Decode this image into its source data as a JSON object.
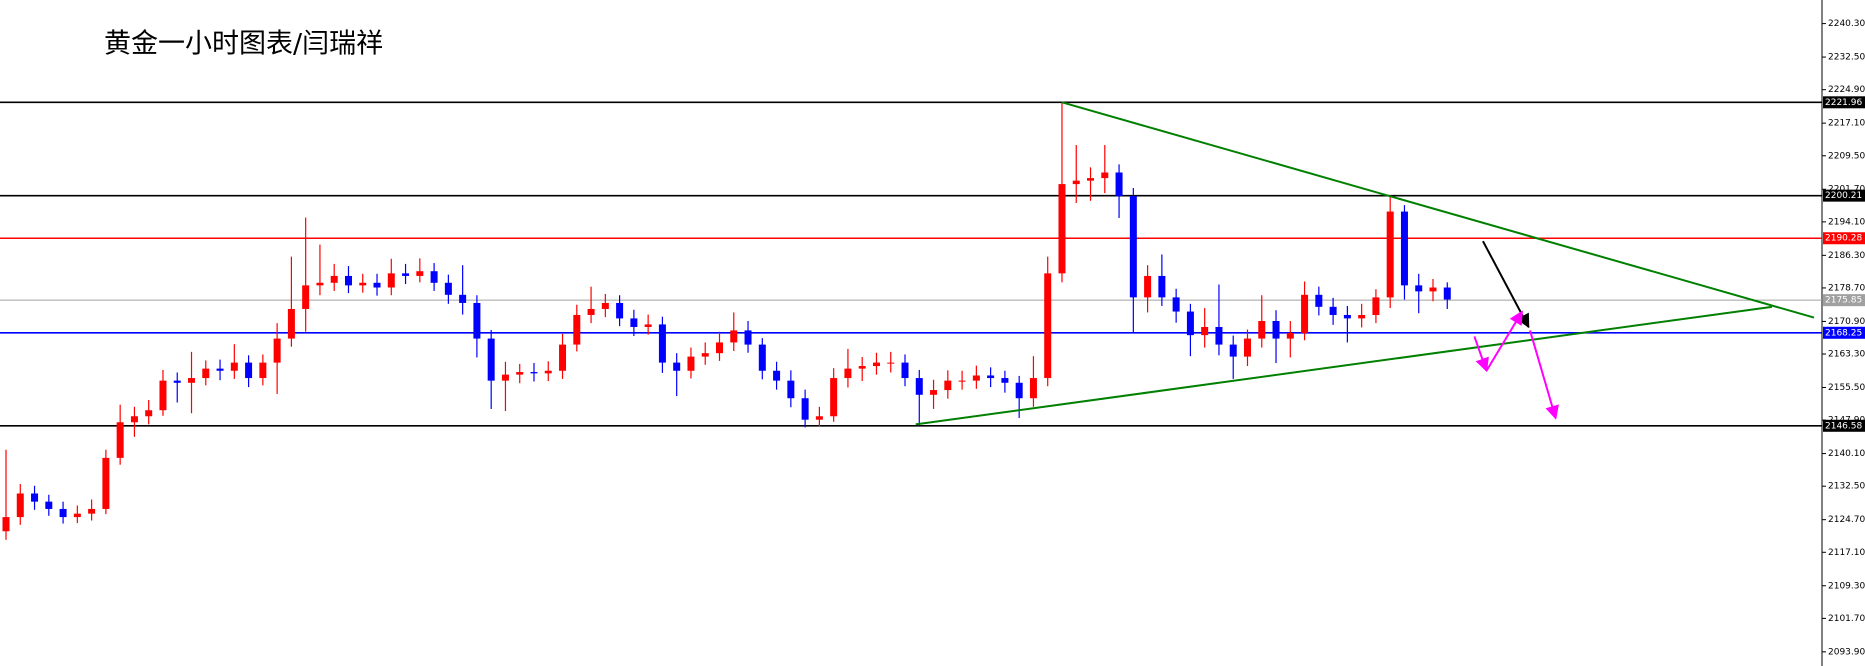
{
  "chart_data": {
    "type": "candlestick",
    "title": "黄金一小时图表/闫瑞祥",
    "up_color": "#ff0000",
    "down_color": "#0000ff",
    "ylim": [
      2090.6,
      2245.8
    ],
    "yticks": [
      {
        "value": 2240.3,
        "label": "2240.30"
      },
      {
        "value": 2232.5,
        "label": "2232.50"
      },
      {
        "value": 2224.9,
        "label": "2224.90"
      },
      {
        "value": 2217.1,
        "label": "2217.10"
      },
      {
        "value": 2209.5,
        "label": "2209.50"
      },
      {
        "value": 2201.7,
        "label": "2201.70"
      },
      {
        "value": 2194.1,
        "label": "2194.10"
      },
      {
        "value": 2186.3,
        "label": "2186.30"
      },
      {
        "value": 2178.7,
        "label": "2178.70"
      },
      {
        "value": 2170.9,
        "label": "2170.90"
      },
      {
        "value": 2163.3,
        "label": "2163.30"
      },
      {
        "value": 2155.5,
        "label": "2155.50"
      },
      {
        "value": 2147.9,
        "label": "2147.90"
      },
      {
        "value": 2140.1,
        "label": "2140.10"
      },
      {
        "value": 2132.5,
        "label": "2132.50"
      },
      {
        "value": 2124.7,
        "label": "2124.70"
      },
      {
        "value": 2117.1,
        "label": "2117.10"
      },
      {
        "value": 2109.3,
        "label": "2109.30"
      },
      {
        "value": 2101.7,
        "label": "2101.70"
      },
      {
        "value": 2093.9,
        "label": "2093.90"
      }
    ],
    "open": [
      2122.0,
      2125.3,
      2130.8,
      2128.9,
      2127.2,
      2125.3,
      2126.1,
      2127.2,
      2139.1,
      2147.4,
      2148.8,
      2150.2,
      2157.1,
      2156.6,
      2157.7,
      2159.9,
      2159.4,
      2161.3,
      2157.7,
      2161.3,
      2166.9,
      2173.8,
      2179.3,
      2179.9,
      2181.5,
      2179.3,
      2179.9,
      2178.8,
      2182.1,
      2181.5,
      2182.6,
      2179.9,
      2177.1,
      2175.2,
      2166.9,
      2157.1,
      2158.5,
      2159.1,
      2158.8,
      2159.4,
      2165.5,
      2172.4,
      2173.8,
      2175.2,
      2171.6,
      2169.6,
      2170.2,
      2161.3,
      2159.4,
      2162.7,
      2163.5,
      2166.0,
      2168.8,
      2165.5,
      2159.4,
      2157.1,
      2153.0,
      2148.0,
      2148.8,
      2157.7,
      2159.9,
      2160.5,
      2161.3,
      2161.3,
      2157.7,
      2153.8,
      2154.9,
      2157.1,
      2157.1,
      2158.3,
      2157.7,
      2156.6,
      2153.0,
      2157.7,
      2182.1,
      2202.9,
      2203.7,
      2204.3,
      2205.6,
      2200.1,
      2176.5,
      2181.5,
      2176.5,
      2173.2,
      2167.7,
      2169.6,
      2165.5,
      2162.7,
      2166.9,
      2171.0,
      2166.9,
      2168.2,
      2177.1,
      2174.3,
      2172.4,
      2171.6,
      2172.4,
      2176.5,
      2196.5,
      2179.3,
      2177.9,
      2178.8
    ],
    "high": [
      2141.0,
      2133.0,
      2132.6,
      2130.5,
      2128.9,
      2128.0,
      2129.4,
      2141.0,
      2151.5,
      2151.0,
      2152.6,
      2159.6,
      2159.0,
      2163.8,
      2161.8,
      2162.0,
      2165.6,
      2163.0,
      2163.2,
      2170.5,
      2186.0,
      2195.1,
      2188.8,
      2184.3,
      2183.8,
      2182.0,
      2182.0,
      2185.5,
      2184.3,
      2185.6,
      2184.5,
      2181.8,
      2184.0,
      2177.0,
      2168.9,
      2161.5,
      2161.0,
      2161.2,
      2161.6,
      2168.0,
      2174.8,
      2179.0,
      2177.3,
      2177.0,
      2173.6,
      2172.5,
      2172.0,
      2163.5,
      2164.8,
      2166.0,
      2168.5,
      2173.0,
      2171.0,
      2167.0,
      2161.5,
      2159.5,
      2155.0,
      2151.0,
      2160.0,
      2164.5,
      2162.6,
      2163.6,
      2163.8,
      2163.2,
      2159.6,
      2157.3,
      2159.5,
      2159.4,
      2160.6,
      2160.2,
      2159.4,
      2158.2,
      2162.8,
      2186.0,
      2221.96,
      2212.0,
      2206.8,
      2212.0,
      2207.5,
      2202.0,
      2184.0,
      2186.5,
      2178.5,
      2175.0,
      2174.0,
      2179.5,
      2167.6,
      2169.0,
      2177.0,
      2173.5,
      2171.0,
      2180.2,
      2179.0,
      2176.4,
      2174.5,
      2175.0,
      2178.4,
      2200.2,
      2198.0,
      2182.0,
      2180.8,
      2180.0
    ],
    "low": [
      2120.0,
      2123.5,
      2127.0,
      2125.6,
      2123.8,
      2123.9,
      2124.5,
      2126.0,
      2137.5,
      2144.0,
      2146.9,
      2148.9,
      2152.0,
      2149.5,
      2156.0,
      2157.2,
      2157.5,
      2155.6,
      2156.0,
      2154.0,
      2165.0,
      2168.5,
      2177.0,
      2178.0,
      2177.5,
      2177.6,
      2176.9,
      2177.0,
      2179.6,
      2180.0,
      2178.0,
      2175.0,
      2172.5,
      2162.5,
      2150.5,
      2150.0,
      2156.5,
      2156.9,
      2157.0,
      2157.5,
      2163.9,
      2170.5,
      2171.9,
      2169.8,
      2167.5,
      2167.8,
      2158.9,
      2153.5,
      2157.6,
      2160.8,
      2161.7,
      2164.0,
      2163.6,
      2157.4,
      2155.0,
      2150.9,
      2146.2,
      2146.4,
      2147.5,
      2155.5,
      2157.0,
      2158.5,
      2159.0,
      2155.8,
      2146.6,
      2150.5,
      2152.9,
      2155.0,
      2155.2,
      2155.6,
      2154.3,
      2148.4,
      2151.0,
      2155.8,
      2180.0,
      2198.5,
      2199.0,
      2200.8,
      2195.0,
      2168.2,
      2173.0,
      2174.5,
      2170.6,
      2162.8,
      2164.8,
      2163.0,
      2157.5,
      2160.5,
      2164.8,
      2161.2,
      2162.5,
      2166.5,
      2172.3,
      2170.1,
      2166.0,
      2169.5,
      2170.5,
      2174.0,
      2176.0,
      2172.8,
      2175.6,
      2173.8
    ],
    "close": [
      2125.3,
      2130.8,
      2128.9,
      2127.2,
      2125.3,
      2126.1,
      2127.2,
      2139.1,
      2147.4,
      2148.8,
      2150.2,
      2157.1,
      2156.6,
      2157.7,
      2159.9,
      2159.4,
      2161.3,
      2157.7,
      2161.3,
      2166.9,
      2173.8,
      2179.3,
      2179.9,
      2181.5,
      2179.3,
      2179.9,
      2178.8,
      2182.1,
      2181.5,
      2182.6,
      2179.9,
      2177.1,
      2175.2,
      2166.9,
      2157.1,
      2158.5,
      2159.1,
      2158.8,
      2159.4,
      2165.5,
      2172.4,
      2173.8,
      2175.2,
      2171.6,
      2169.6,
      2170.2,
      2161.3,
      2159.4,
      2162.7,
      2163.5,
      2166.0,
      2168.8,
      2165.5,
      2159.4,
      2157.1,
      2153.0,
      2148.0,
      2148.8,
      2157.7,
      2159.9,
      2160.5,
      2161.3,
      2161.3,
      2157.7,
      2153.8,
      2154.9,
      2157.1,
      2157.1,
      2158.3,
      2157.7,
      2156.6,
      2153.0,
      2157.7,
      2182.1,
      2202.9,
      2203.7,
      2204.3,
      2205.6,
      2200.1,
      2176.5,
      2181.5,
      2176.5,
      2173.2,
      2167.7,
      2169.6,
      2165.5,
      2162.7,
      2166.9,
      2171.0,
      2166.9,
      2168.2,
      2177.1,
      2174.3,
      2172.4,
      2171.6,
      2172.4,
      2176.5,
      2196.5,
      2179.3,
      2177.9,
      2178.8,
      2176.0
    ],
    "levels": [
      {
        "value": 2221.96,
        "color": "#000000"
      },
      {
        "value": 2200.21,
        "color": "#000000"
      },
      {
        "value": 2190.28,
        "color": "#ff0000"
      },
      {
        "value": 2175.85,
        "color": "#a0a0a0"
      },
      {
        "value": 2168.25,
        "color": "#0000ff"
      },
      {
        "value": 2146.58,
        "color": "#000000"
      }
    ],
    "drawings": [
      {
        "color": "#008000",
        "arrow": false,
        "x": [
          74,
          126.7
        ],
        "y": [
          2221.96,
          2171.8
        ]
      },
      {
        "color": "#008000",
        "arrow": false,
        "x": [
          63.75,
          123.75
        ],
        "y": [
          2146.9,
          2174.3
        ]
      },
      {
        "color": "#000000",
        "arrow": true,
        "x": [
          103.5,
          106.7
        ],
        "y": [
          2189.6,
          2169.6
        ]
      },
      {
        "color": "#ff00ff",
        "arrow": true,
        "x": [
          102.9,
          103.75
        ],
        "y": [
          2167.4,
          2159.4
        ]
      },
      {
        "color": "#ff00ff",
        "arrow": true,
        "x": [
          103.75,
          106.25
        ],
        "y": [
          2159.4,
          2173.2
        ]
      },
      {
        "color": "#ff00ff",
        "arrow": true,
        "x": [
          106.8,
          108.6
        ],
        "y": [
          2168.8,
          2148.3
        ]
      }
    ]
  }
}
